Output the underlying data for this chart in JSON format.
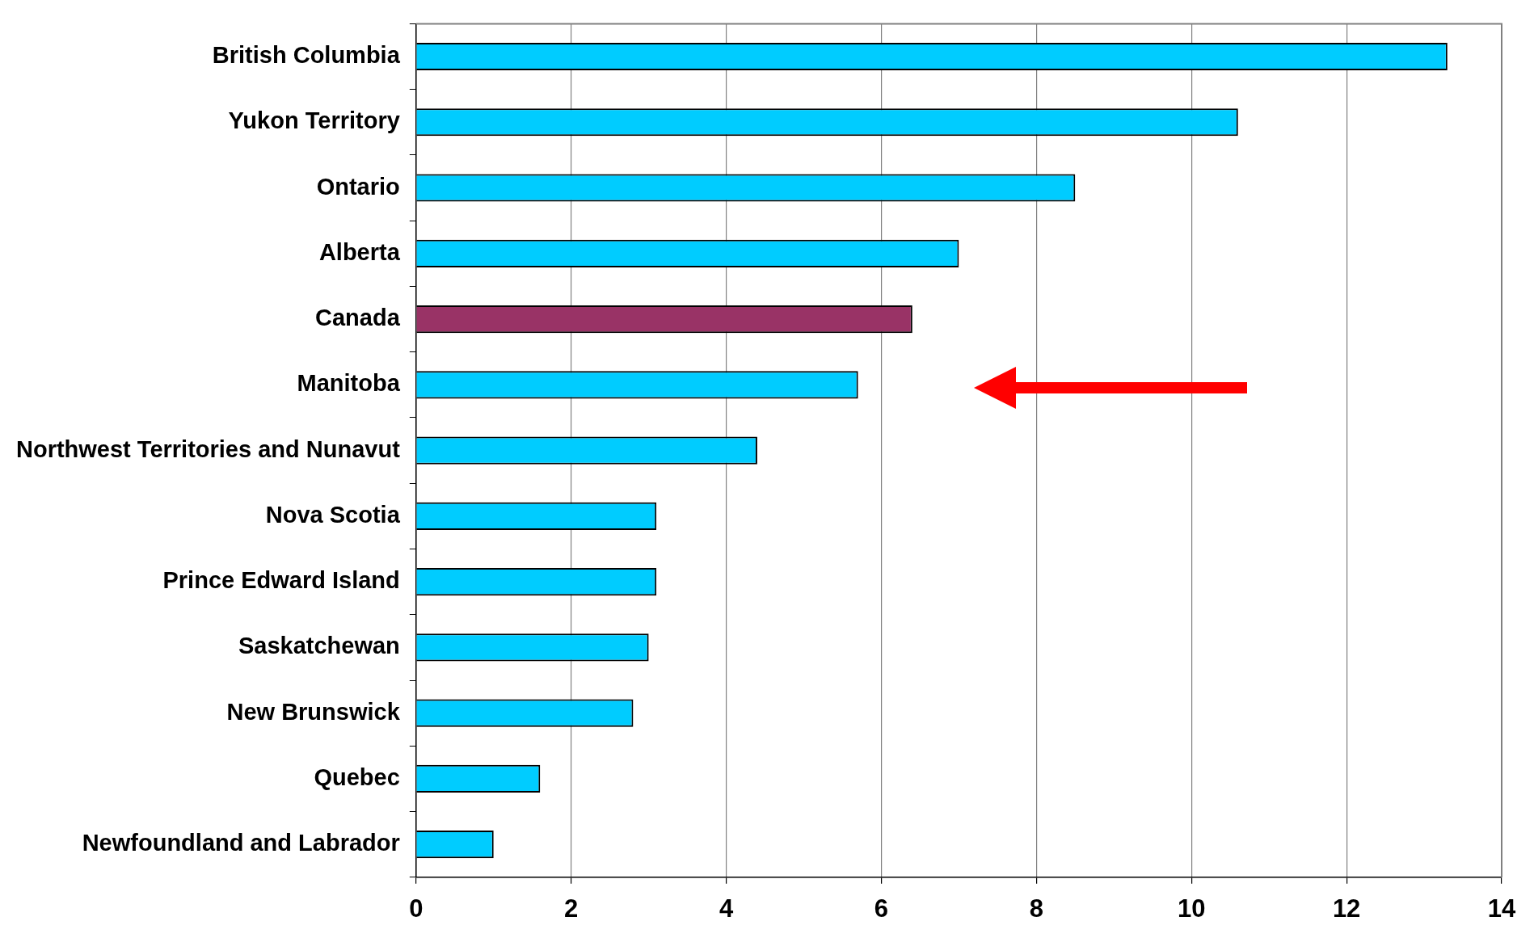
{
  "chart_data": {
    "type": "bar",
    "orientation": "horizontal",
    "categories": [
      "British Columbia",
      "Yukon Territory",
      "Ontario",
      "Alberta",
      "Canada",
      "Manitoba",
      "Northwest Territories and Nunavut",
      "Nova Scotia",
      "Prince Edward Island",
      "Saskatchewan",
      "New Brunswick",
      "Quebec",
      "Newfoundland and Labrador"
    ],
    "values": [
      13.3,
      10.6,
      8.5,
      7.0,
      6.4,
      5.7,
      4.4,
      3.1,
      3.1,
      3.0,
      2.8,
      1.6,
      1.0
    ],
    "colors": [
      "#00ccff",
      "#00ccff",
      "#00ccff",
      "#00ccff",
      "#993366",
      "#00ccff",
      "#00ccff",
      "#00ccff",
      "#00ccff",
      "#00ccff",
      "#00ccff",
      "#00ccff",
      "#00ccff"
    ],
    "xlim": [
      0,
      14
    ],
    "xticks": [
      0,
      2,
      4,
      6,
      8,
      10,
      12,
      14
    ],
    "grid": "x",
    "legend": false
  }
}
